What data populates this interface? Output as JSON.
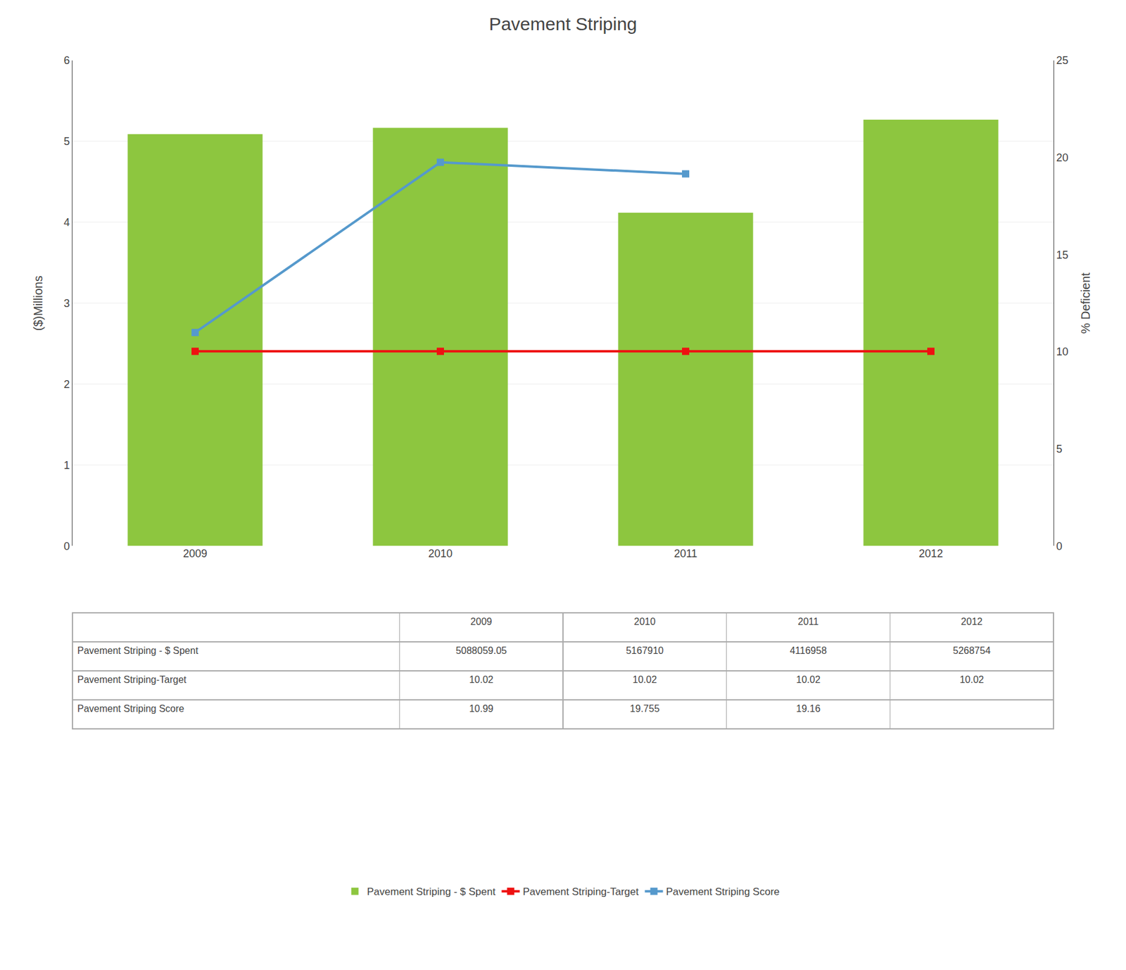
{
  "chart_data": {
    "type": "bar",
    "title": "Pavement Striping",
    "categories": [
      "2009",
      "2010",
      "2011",
      "2012"
    ],
    "ylabel": "($)Millions",
    "y2label": "% Deficient",
    "series": [
      {
        "name": "Pavement Striping - $ Spent",
        "type": "bar",
        "color": "#8DC63F",
        "values": [
          5.08805905,
          5.16791,
          4.116958,
          5.268754
        ]
      },
      {
        "name": "Pavement Striping-Target",
        "type": "line",
        "color": "#EE1111",
        "marker": "square",
        "axis": "y2",
        "values": [
          10.02,
          10.02,
          10.02,
          10.02
        ]
      },
      {
        "name": "Pavement Striping Score",
        "type": "line",
        "color": "#5599CC",
        "marker": "square",
        "axis": "y2",
        "values": [
          10.99,
          19.755,
          19.16,
          null
        ]
      }
    ],
    "ylim": [
      0,
      6
    ],
    "yticks": [
      0,
      1,
      2,
      3,
      4,
      5,
      6
    ],
    "y2lim": [
      0,
      25
    ],
    "y2ticks": [
      0,
      5,
      10,
      15,
      20,
      25
    ],
    "grid": true,
    "legend": "bottom",
    "table": {
      "columns": [
        "2009",
        "2010",
        "2011",
        "2012"
      ],
      "rows": [
        "Pavement Striping - $ Spent",
        "Pavement Striping-Target",
        "Pavement Striping Score"
      ],
      "cells": [
        [
          "5088059.05",
          "5167910",
          "4116958",
          "5268754"
        ],
        [
          "10.02",
          "10.02",
          "10.02",
          "10.02"
        ],
        [
          "10.99",
          "19.755",
          "19.16",
          null
        ]
      ]
    }
  }
}
